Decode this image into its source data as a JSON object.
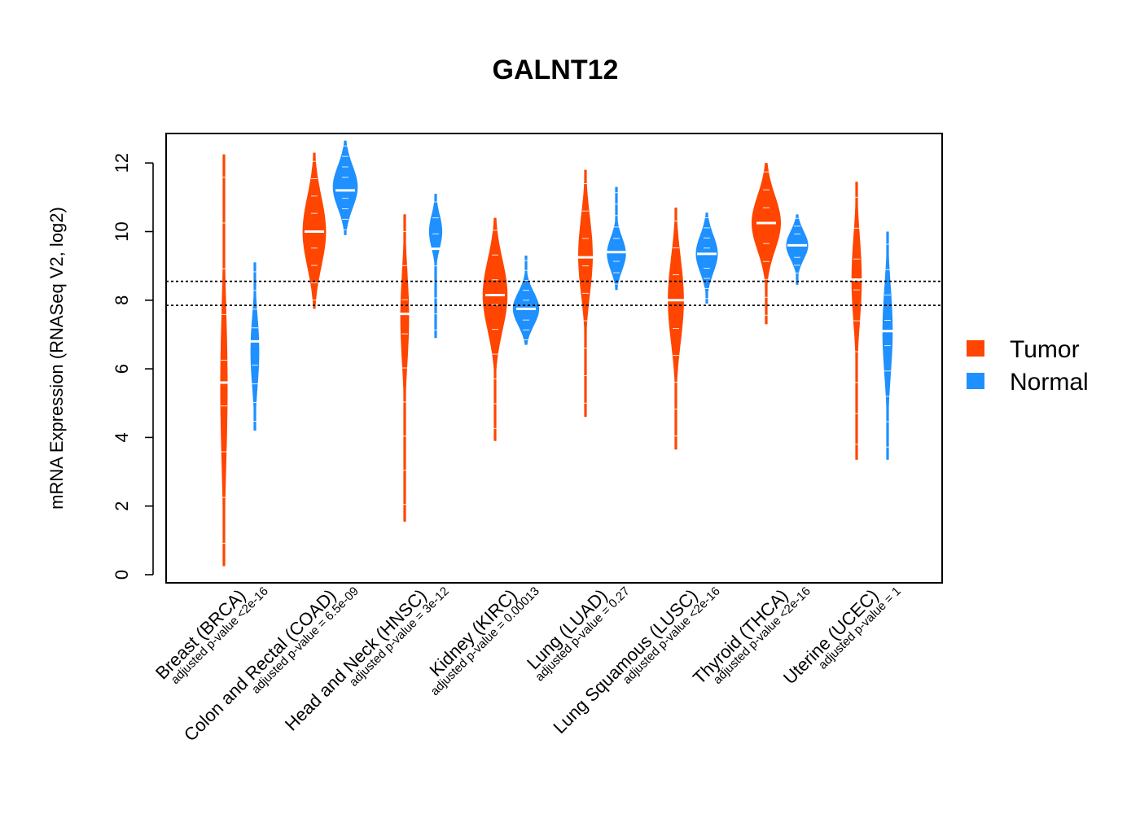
{
  "chart_data": {
    "type": "violin",
    "title": "GALNT12",
    "xlabel": "",
    "ylabel": "mRNA Expression (RNASeq V2, log2)",
    "ylim": [
      -0.2,
      12.9
    ],
    "yticks": [
      0,
      2,
      4,
      6,
      8,
      10,
      12
    ],
    "reference_lines": [
      8.55,
      7.85
    ],
    "categories": [
      "Breast (BRCA)",
      "Colon and Rectal (COAD)",
      "Head and Neck (HNSC)",
      "Kidney (KIRC)",
      "Lung (LUAD)",
      "Lung Squamous (LUSC)",
      "Thyroid (THCA)",
      "Uterine (UCEC)"
    ],
    "pvalues": [
      "adjusted p-value <2e-16",
      "adjusted p-value = 6.5e-09",
      "adjusted p-value = 3e-12",
      "adjusted p-value = 0.00013",
      "adjusted p-value = 0.27",
      "adjusted p-value <2e-16",
      "adjusted p-value <2e-16",
      "adjusted p-value = 1"
    ],
    "legend": [
      {
        "name": "Tumor",
        "color": "#FF4500"
      },
      {
        "name": "Normal",
        "color": "#1E90FF"
      }
    ],
    "series": [
      {
        "name": "Tumor",
        "color": "#FF4500",
        "groups": [
          {
            "min": 0.25,
            "max": 12.25,
            "median": 5.6,
            "mode": 5.5,
            "halfwidth": 0.25
          },
          {
            "min": 7.75,
            "max": 12.3,
            "median": 10.0,
            "mode": 10.0,
            "halfwidth": 0.8
          },
          {
            "min": 1.55,
            "max": 10.5,
            "median": 7.6,
            "mode": 7.5,
            "halfwidth": 0.3
          },
          {
            "min": 3.9,
            "max": 10.4,
            "median": 8.15,
            "mode": 8.15,
            "halfwidth": 0.85
          },
          {
            "min": 4.6,
            "max": 11.8,
            "median": 9.25,
            "mode": 9.3,
            "halfwidth": 0.5
          },
          {
            "min": 3.65,
            "max": 10.7,
            "median": 8.0,
            "mode": 8.0,
            "halfwidth": 0.55
          },
          {
            "min": 7.3,
            "max": 12.0,
            "median": 10.25,
            "mode": 10.25,
            "halfwidth": 1.0
          },
          {
            "min": 3.35,
            "max": 11.45,
            "median": 8.6,
            "mode": 8.6,
            "halfwidth": 0.35
          }
        ]
      },
      {
        "name": "Normal",
        "color": "#1E90FF",
        "groups": [
          {
            "min": 4.2,
            "max": 9.1,
            "median": 6.8,
            "mode": 6.5,
            "halfwidth": 0.3
          },
          {
            "min": 9.9,
            "max": 12.65,
            "median": 11.2,
            "mode": 11.3,
            "halfwidth": 0.85
          },
          {
            "min": 6.9,
            "max": 11.1,
            "median": 9.5,
            "mode": 10.0,
            "halfwidth": 0.45
          },
          {
            "min": 6.7,
            "max": 9.3,
            "median": 7.75,
            "mode": 7.75,
            "halfwidth": 0.9
          },
          {
            "min": 8.3,
            "max": 11.3,
            "median": 9.4,
            "mode": 9.35,
            "halfwidth": 0.65
          },
          {
            "min": 7.9,
            "max": 10.55,
            "median": 9.35,
            "mode": 9.35,
            "halfwidth": 0.75
          },
          {
            "min": 8.45,
            "max": 10.5,
            "median": 9.6,
            "mode": 9.6,
            "halfwidth": 0.75
          },
          {
            "min": 3.35,
            "max": 10.0,
            "median": 7.1,
            "mode": 7.1,
            "halfwidth": 0.35
          }
        ]
      }
    ]
  }
}
